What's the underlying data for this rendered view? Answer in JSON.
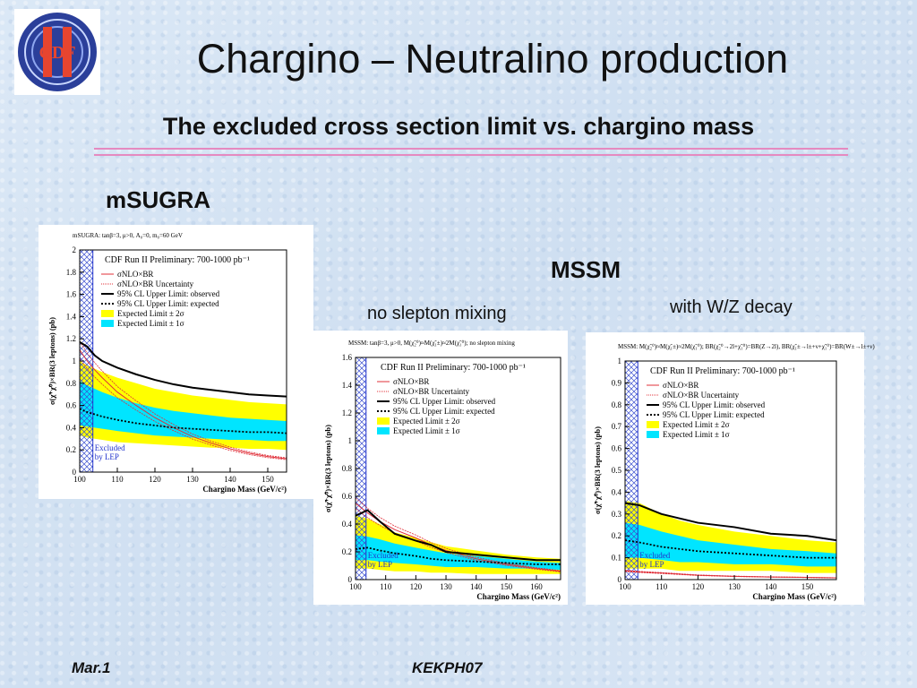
{
  "title": "Chargino – Neutralino production",
  "subtitle": "The excluded cross section limit vs. chargino mass",
  "labels": {
    "msugra": "mSUGRA",
    "mssm": "MSSM",
    "no_slepton": "no slepton mixing",
    "wz_decay": "with W/Z decay"
  },
  "footer": {
    "left": "Mar.1",
    "center": "KEKPH07"
  },
  "colors": {
    "band2": "#ffff00",
    "band1": "#00e5ff",
    "theory": "#e0303a",
    "observed": "#000000"
  },
  "chart_data": [
    {
      "type": "line",
      "header": "mSUGRA: tanβ=3, μ>0, A₀=0, m₀=60 GeV",
      "title": "CDF Run II Preliminary: 700-1000 pb⁻¹",
      "xlabel": "Chargino Mass (GeV/c²)",
      "ylabel": "σ(χ̃⁺χ̃⁰)×BR(3 leptons) (pb)",
      "xlim": [
        100,
        155
      ],
      "ylim": [
        0,
        2
      ],
      "xticks": [
        "100",
        "110",
        "120",
        "130",
        "140",
        "150"
      ],
      "yticks": [
        "0",
        "0.2",
        "0.4",
        "0.6",
        "0.8",
        "1",
        "1.2",
        "1.4",
        "1.6",
        "1.8",
        "2"
      ],
      "legend": [
        "σNLO×BR",
        "σNLO×BR Uncertainty",
        "95% CL Upper Limit: observed",
        "95% CL Upper Limit: expected",
        "Expected Limit ± 2σ",
        "Expected Limit ± 1σ"
      ],
      "excluded_label": [
        "Excluded",
        "by LEP"
      ],
      "excluded_x": [
        100,
        103.5
      ],
      "x": [
        100,
        102,
        104,
        106,
        110,
        115,
        120,
        125,
        130,
        135,
        140,
        145,
        150,
        155
      ],
      "observed": [
        1.17,
        1.13,
        1.05,
        1.0,
        0.94,
        0.88,
        0.83,
        0.79,
        0.76,
        0.74,
        0.72,
        0.7,
        0.69,
        0.68
      ],
      "expected": [
        0.57,
        0.54,
        0.52,
        0.5,
        0.47,
        0.44,
        0.42,
        0.4,
        0.39,
        0.38,
        0.37,
        0.36,
        0.36,
        0.35
      ],
      "band2": [
        [
          0.33,
          1.0
        ],
        [
          0.31,
          0.96
        ],
        [
          0.3,
          0.93
        ],
        [
          0.29,
          0.9
        ],
        [
          0.27,
          0.85
        ],
        [
          0.26,
          0.8
        ],
        [
          0.25,
          0.75
        ],
        [
          0.24,
          0.72
        ],
        [
          0.23,
          0.69
        ],
        [
          0.22,
          0.67
        ],
        [
          0.22,
          0.65
        ],
        [
          0.21,
          0.63
        ],
        [
          0.21,
          0.62
        ],
        [
          0.2,
          0.61
        ]
      ],
      "band1": [
        [
          0.42,
          0.82
        ],
        [
          0.41,
          0.78
        ],
        [
          0.4,
          0.75
        ],
        [
          0.39,
          0.72
        ],
        [
          0.37,
          0.67
        ],
        [
          0.35,
          0.62
        ],
        [
          0.33,
          0.58
        ],
        [
          0.32,
          0.55
        ],
        [
          0.31,
          0.53
        ],
        [
          0.3,
          0.51
        ],
        [
          0.29,
          0.49
        ],
        [
          0.29,
          0.48
        ],
        [
          0.28,
          0.47
        ],
        [
          0.28,
          0.46
        ]
      ],
      "theory": [
        1.1,
        1.0,
        0.92,
        0.85,
        0.72,
        0.6,
        0.49,
        0.4,
        0.32,
        0.26,
        0.21,
        0.17,
        0.14,
        0.12
      ]
    },
    {
      "type": "line",
      "header": "MSSM: tanβ=3, μ>0, M(χ̃₂⁰)≈M(χ̃₁±)≈2M(χ̃₁⁰); no slepton mixing",
      "title": "CDF Run II Preliminary: 700-1000 pb⁻¹",
      "xlabel": "Chargino Mass (GeV/c²)",
      "ylabel": "σ(χ̃⁺χ̃⁰)×BR(3 leptons) (pb)",
      "xlim": [
        100,
        168
      ],
      "ylim": [
        0,
        1.6
      ],
      "xticks": [
        "100",
        "110",
        "120",
        "130",
        "140",
        "150",
        "160"
      ],
      "yticks": [
        "0",
        "0.2",
        "0.4",
        "0.6",
        "0.8",
        "1",
        "1.2",
        "1.4",
        "1.6"
      ],
      "legend": [
        "σNLO×BR",
        "σNLO×BR Uncertainty",
        "95% CL Upper Limit: observed",
        "95% CL Upper Limit: expected",
        "Expected Limit ± 2σ",
        "Expected Limit ± 1σ"
      ],
      "excluded_label": [
        "Excluded",
        "by LEP"
      ],
      "excluded_x": [
        100,
        103.5
      ],
      "x": [
        100,
        104,
        108,
        113,
        120,
        125,
        130,
        140,
        150,
        160,
        168
      ],
      "observed": [
        0.46,
        0.5,
        0.42,
        0.33,
        0.28,
        0.25,
        0.2,
        0.18,
        0.16,
        0.14,
        0.14
      ],
      "expected": [
        0.22,
        0.23,
        0.21,
        0.19,
        0.17,
        0.15,
        0.14,
        0.13,
        0.12,
        0.11,
        0.11
      ],
      "band2": [
        [
          0.08,
          0.46
        ],
        [
          0.08,
          0.44
        ],
        [
          0.07,
          0.4
        ],
        [
          0.06,
          0.34
        ],
        [
          0.06,
          0.3
        ],
        [
          0.05,
          0.27
        ],
        [
          0.05,
          0.24
        ],
        [
          0.04,
          0.21
        ],
        [
          0.04,
          0.18
        ],
        [
          0.04,
          0.16
        ],
        [
          0.04,
          0.15
        ]
      ],
      "band1": [
        [
          0.14,
          0.32
        ],
        [
          0.14,
          0.31
        ],
        [
          0.13,
          0.29
        ],
        [
          0.12,
          0.26
        ],
        [
          0.11,
          0.23
        ],
        [
          0.1,
          0.21
        ],
        [
          0.09,
          0.19
        ],
        [
          0.09,
          0.17
        ],
        [
          0.08,
          0.15
        ],
        [
          0.08,
          0.13
        ],
        [
          0.07,
          0.12
        ]
      ],
      "theory": [
        0.55,
        0.48,
        0.42,
        0.36,
        0.3,
        0.25,
        0.21,
        0.15,
        0.11,
        0.08,
        0.06
      ]
    },
    {
      "type": "line",
      "header": "MSSM: M(χ̃₂⁰)≈M(χ̃₁±)≈2M(χ̃₁⁰); BR(χ̃₂⁰→2l+χ̃₁⁰)=BR(Z→2l), BR(χ̃₁±→l±+ν+χ̃₁⁰)=BR(W±→l±+ν)",
      "title": "CDF Run II Preliminary: 700-1000 pb⁻¹",
      "xlabel": "Chargino Mass (GeV/c²)",
      "ylabel": "σ(χ̃⁺χ̃⁰)×BR(3 leptons) (pb)",
      "xlim": [
        100,
        158
      ],
      "ylim": [
        0,
        1
      ],
      "xticks": [
        "100",
        "110",
        "120",
        "130",
        "140",
        "150"
      ],
      "yticks": [
        "0",
        "0.1",
        "0.2",
        "0.3",
        "0.4",
        "0.5",
        "0.6",
        "0.7",
        "0.8",
        "0.9",
        "1"
      ],
      "legend": [
        "σNLO×BR",
        "σNLO×BR Uncertainty",
        "95% CL Upper Limit: observed",
        "95% CL Upper Limit: expected",
        "Expected Limit ± 2σ",
        "Expected Limit ± 1σ"
      ],
      "excluded_label": [
        "Excluded",
        "by LEP"
      ],
      "excluded_x": [
        100,
        103.5
      ],
      "x": [
        100,
        104,
        110,
        115,
        120,
        130,
        140,
        150,
        158
      ],
      "observed": [
        0.35,
        0.34,
        0.3,
        0.28,
        0.26,
        0.24,
        0.21,
        0.2,
        0.18
      ],
      "expected": [
        0.18,
        0.17,
        0.15,
        0.14,
        0.13,
        0.12,
        0.11,
        0.1,
        0.1
      ],
      "band2": [
        [
          0.05,
          0.36
        ],
        [
          0.05,
          0.35
        ],
        [
          0.05,
          0.3
        ],
        [
          0.04,
          0.27
        ],
        [
          0.04,
          0.25
        ],
        [
          0.04,
          0.22
        ],
        [
          0.04,
          0.2
        ],
        [
          0.03,
          0.18
        ],
        [
          0.03,
          0.17
        ]
      ],
      "band1": [
        [
          0.1,
          0.26
        ],
        [
          0.1,
          0.25
        ],
        [
          0.09,
          0.22
        ],
        [
          0.08,
          0.2
        ],
        [
          0.08,
          0.18
        ],
        [
          0.07,
          0.16
        ],
        [
          0.07,
          0.14
        ],
        [
          0.06,
          0.13
        ],
        [
          0.06,
          0.12
        ]
      ],
      "theory": [
        0.04,
        0.035,
        0.03,
        0.025,
        0.02,
        0.015,
        0.012,
        0.01,
        0.008
      ]
    }
  ]
}
